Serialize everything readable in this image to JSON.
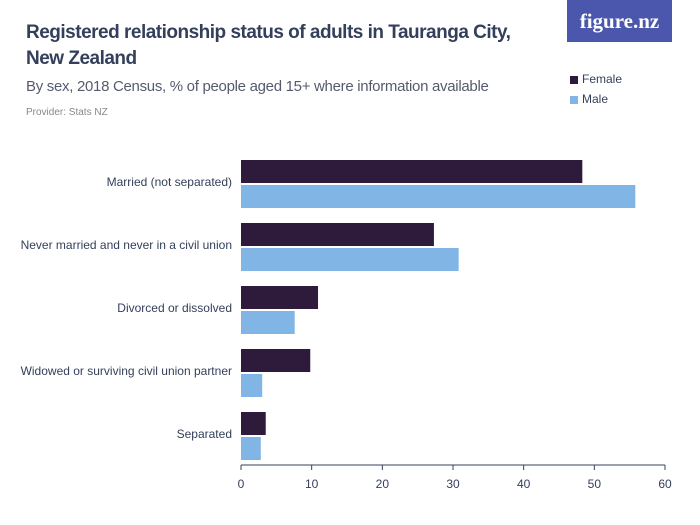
{
  "logo": "figure.nz",
  "chart_data": {
    "type": "hbar",
    "title": "Registered relationship status of adults in Tauranga City, New Zealand",
    "subtitle": "By sex, 2018 Census, % of people aged 15+ where information available",
    "provider": "Provider: Stats NZ",
    "categories": [
      "Married (not separated)",
      "Never married and never in a civil union",
      "Divorced or dissolved",
      "Widowed or surviving civil union partner",
      "Separated"
    ],
    "series": [
      {
        "name": "Female",
        "color": "#2e1a3a",
        "values": [
          48.3,
          27.3,
          10.9,
          9.8,
          3.5
        ]
      },
      {
        "name": "Male",
        "color": "#80b5e5",
        "values": [
          55.8,
          30.8,
          7.6,
          3.0,
          2.8
        ]
      }
    ],
    "xlim": [
      0,
      60
    ],
    "xticks": [
      0,
      10,
      20,
      30,
      40,
      50,
      60
    ]
  }
}
